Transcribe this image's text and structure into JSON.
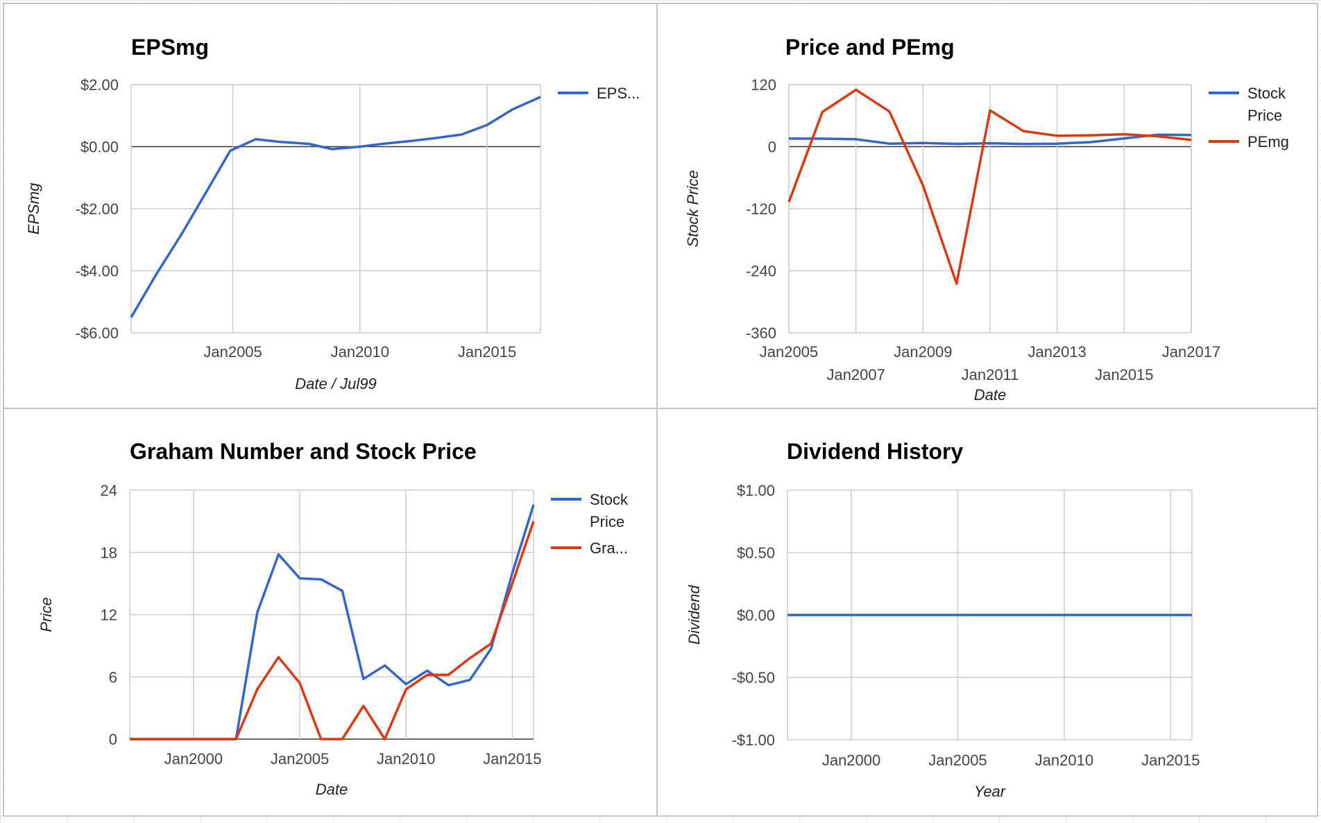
{
  "colors": {
    "blue": "#3366cc",
    "red": "#dc3912"
  },
  "chart_data": [
    {
      "type": "line",
      "title": "EPSmg",
      "xlabel": "Date / Jul99",
      "ylabel": "EPSmg",
      "xlim": [
        2001.0,
        2017.1
      ],
      "ylim": [
        -6,
        2
      ],
      "xticks": [
        {
          "v": 2005,
          "label": "Jan2005"
        },
        {
          "v": 2010,
          "label": "Jan2010"
        },
        {
          "v": 2015,
          "label": "Jan2015"
        }
      ],
      "yticks": [
        {
          "v": 2,
          "label": "$2.00"
        },
        {
          "v": 0,
          "label": "$0.00"
        },
        {
          "v": -2,
          "label": "-$2.00"
        },
        {
          "v": -4,
          "label": "-$4.00"
        },
        {
          "v": -6,
          "label": "-$6.00"
        }
      ],
      "grid": true,
      "legend_position": "right",
      "series": [
        {
          "name": "EPS...",
          "color": "#3366cc",
          "points": [
            [
              2001.0,
              -5.5
            ],
            [
              2002.0,
              -4.1
            ],
            [
              2003.0,
              -2.8
            ],
            [
              2004.0,
              -1.4
            ],
            [
              2004.9,
              -0.13
            ],
            [
              2005.9,
              0.24
            ],
            [
              2006.9,
              0.15
            ],
            [
              2008.0,
              0.09
            ],
            [
              2008.9,
              -0.08
            ],
            [
              2010.0,
              0.0
            ],
            [
              2011.0,
              0.1
            ],
            [
              2012.0,
              0.18
            ],
            [
              2013.0,
              0.28
            ],
            [
              2014.0,
              0.39
            ],
            [
              2015.0,
              0.7
            ],
            [
              2016.0,
              1.2
            ],
            [
              2017.1,
              1.6
            ]
          ]
        }
      ]
    },
    {
      "type": "line",
      "title": "Price and PEmg",
      "xlabel": "Date",
      "ylabel": "Stock Price",
      "xlim": [
        2005,
        2017
      ],
      "ylim": [
        -360,
        120
      ],
      "xticks": [
        {
          "v": 2005,
          "label": "Jan2005",
          "row": 0
        },
        {
          "v": 2007,
          "label": "Jan2007",
          "row": 1
        },
        {
          "v": 2009,
          "label": "Jan2009",
          "row": 0
        },
        {
          "v": 2011,
          "label": "Jan2011",
          "row": 1
        },
        {
          "v": 2013,
          "label": "Jan2013",
          "row": 0
        },
        {
          "v": 2015,
          "label": "Jan2015",
          "row": 1
        },
        {
          "v": 2017,
          "label": "Jan2017",
          "row": 0
        }
      ],
      "yticks": [
        {
          "v": 120,
          "label": "120"
        },
        {
          "v": 0,
          "label": "0"
        },
        {
          "v": -120,
          "label": "-120"
        },
        {
          "v": -240,
          "label": "-240"
        },
        {
          "v": -360,
          "label": "-360"
        }
      ],
      "grid": true,
      "legend_position": "right",
      "series": [
        {
          "name": "Stock Price",
          "color": "#3366cc",
          "points": [
            [
              2005.0,
              15.5
            ],
            [
              2006.0,
              15.4
            ],
            [
              2007.0,
              14.3
            ],
            [
              2008.0,
              5.8
            ],
            [
              2009.0,
              7.1
            ],
            [
              2010.0,
              5.3
            ],
            [
              2011.0,
              6.6
            ],
            [
              2012.0,
              5.2
            ],
            [
              2013.0,
              5.7
            ],
            [
              2014.0,
              8.7
            ],
            [
              2015.0,
              16.0
            ],
            [
              2016.0,
              23.0
            ],
            [
              2017.0,
              22.5
            ]
          ]
        },
        {
          "name": "PEmg",
          "color": "#dc3912",
          "points": [
            [
              2005.0,
              -107
            ],
            [
              2006.0,
              67
            ],
            [
              2007.0,
              110
            ],
            [
              2008.0,
              68
            ],
            [
              2009.0,
              -75
            ],
            [
              2010.0,
              -265
            ],
            [
              2011.0,
              70
            ],
            [
              2012.0,
              30
            ],
            [
              2013.0,
              21
            ],
            [
              2014.0,
              22
            ],
            [
              2015.0,
              24
            ],
            [
              2016.0,
              20
            ],
            [
              2017.0,
              13
            ]
          ]
        }
      ]
    },
    {
      "type": "line",
      "title": "Graham Number and Stock Price",
      "xlabel": "Date",
      "ylabel": "Price",
      "xlim": [
        1997.0,
        2016.0
      ],
      "ylim": [
        0,
        24
      ],
      "xticks": [
        {
          "v": 2000,
          "label": "Jan2000"
        },
        {
          "v": 2005,
          "label": "Jan2005"
        },
        {
          "v": 2010,
          "label": "Jan2010"
        },
        {
          "v": 2015,
          "label": "Jan2015"
        }
      ],
      "yticks": [
        {
          "v": 24,
          "label": "24"
        },
        {
          "v": 18,
          "label": "18"
        },
        {
          "v": 12,
          "label": "12"
        },
        {
          "v": 6,
          "label": "6"
        },
        {
          "v": 0,
          "label": "0"
        }
      ],
      "grid": true,
      "legend_position": "right",
      "series": [
        {
          "name": "Stock Price",
          "color": "#3366cc",
          "points": [
            [
              1997.0,
              0
            ],
            [
              1998.0,
              0
            ],
            [
              1999.0,
              0
            ],
            [
              2000.0,
              0
            ],
            [
              2001.0,
              0
            ],
            [
              2002.0,
              0
            ],
            [
              2003.0,
              12.2
            ],
            [
              2004.0,
              17.8
            ],
            [
              2005.0,
              15.5
            ],
            [
              2006.0,
              15.4
            ],
            [
              2007.0,
              14.3
            ],
            [
              2008.0,
              5.8
            ],
            [
              2009.0,
              7.1
            ],
            [
              2010.0,
              5.3
            ],
            [
              2011.0,
              6.6
            ],
            [
              2012.0,
              5.2
            ],
            [
              2013.0,
              5.7
            ],
            [
              2014.0,
              8.7
            ],
            [
              2015.0,
              16.0
            ],
            [
              2016.0,
              22.6
            ]
          ]
        },
        {
          "name": "Gra...",
          "color": "#dc3912",
          "points": [
            [
              1997.0,
              0
            ],
            [
              1998.0,
              0
            ],
            [
              1999.0,
              0
            ],
            [
              2000.0,
              0
            ],
            [
              2001.0,
              0
            ],
            [
              2002.0,
              0
            ],
            [
              2003.0,
              4.8
            ],
            [
              2004.0,
              7.9
            ],
            [
              2005.0,
              5.4
            ],
            [
              2006.0,
              0
            ],
            [
              2007.0,
              0
            ],
            [
              2008.0,
              3.2
            ],
            [
              2009.0,
              0
            ],
            [
              2010.0,
              4.8
            ],
            [
              2011.0,
              6.2
            ],
            [
              2012.0,
              6.2
            ],
            [
              2013.0,
              7.8
            ],
            [
              2014.0,
              9.2
            ],
            [
              2015.0,
              15.0
            ],
            [
              2016.0,
              21.0
            ]
          ]
        }
      ]
    },
    {
      "type": "line",
      "title": "Dividend History",
      "xlabel": "Year",
      "ylabel": "Dividend",
      "xlim": [
        1997.0,
        2016.0
      ],
      "ylim": [
        -1,
        1
      ],
      "xticks": [
        {
          "v": 2000,
          "label": "Jan2000"
        },
        {
          "v": 2005,
          "label": "Jan2005"
        },
        {
          "v": 2010,
          "label": "Jan2010"
        },
        {
          "v": 2015,
          "label": "Jan2015"
        }
      ],
      "yticks": [
        {
          "v": 1,
          "label": "$1.00"
        },
        {
          "v": 0.5,
          "label": "$0.50"
        },
        {
          "v": 0,
          "label": "$0.00"
        },
        {
          "v": -0.5,
          "label": "-$0.50"
        },
        {
          "v": -1,
          "label": "-$1.00"
        }
      ],
      "grid": true,
      "series": [
        {
          "color": "#3366cc",
          "points": [
            [
              1997.0,
              0
            ],
            [
              2016.0,
              0
            ]
          ]
        }
      ]
    }
  ]
}
